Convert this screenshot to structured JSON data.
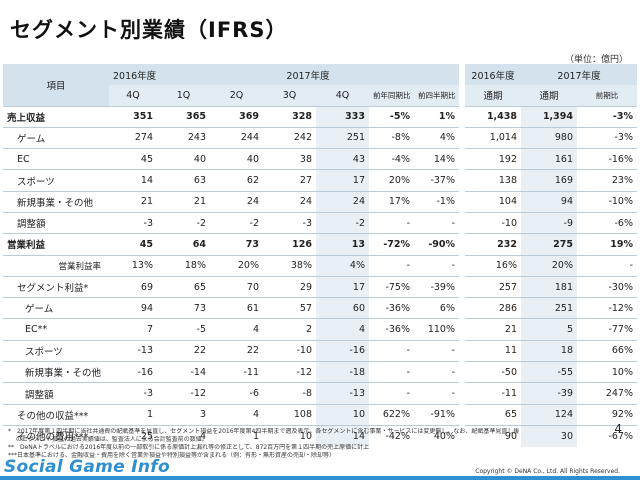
{
  "title": "セグメント別業績（IFRS）",
  "unit": "（単位：億円）",
  "header": {
    "item_label": "項目",
    "fy2016q": "2016年度",
    "fy2017q": "2017年度",
    "fy2016a": "2016年度",
    "fy2017a": "2017年度",
    "cols": [
      "4Q",
      "1Q",
      "2Q",
      "3Q",
      "4Q",
      "前年同期比",
      "前四半期比",
      "通期",
      "通期",
      "前期比"
    ]
  },
  "rows": [
    {
      "label": "売上収益",
      "bold": true,
      "values": [
        "351",
        "365",
        "369",
        "328",
        "333",
        "-5%",
        "1%",
        "1,438",
        "1,394",
        "-3%"
      ]
    },
    {
      "label": "ゲーム",
      "values": [
        "274",
        "243",
        "244",
        "242",
        "251",
        "-8%",
        "4%",
        "1,014",
        "980",
        "-3%"
      ]
    },
    {
      "label": "EC",
      "values": [
        "45",
        "40",
        "40",
        "38",
        "43",
        "-4%",
        "14%",
        "192",
        "161",
        "-16%"
      ]
    },
    {
      "label": "スポーツ",
      "values": [
        "14",
        "63",
        "62",
        "27",
        "17",
        "20%",
        "-37%",
        "138",
        "169",
        "23%"
      ]
    },
    {
      "label": "新規事業・その他",
      "values": [
        "21",
        "21",
        "24",
        "24",
        "24",
        "17%",
        "-1%",
        "104",
        "94",
        "-10%"
      ]
    },
    {
      "label": "調整額",
      "values": [
        "-3",
        "-2",
        "-2",
        "-3",
        "-2",
        "-",
        "-",
        "-10",
        "-9",
        "-6%"
      ]
    },
    {
      "label": "営業利益",
      "bold": true,
      "values": [
        "45",
        "64",
        "73",
        "126",
        "13",
        "-72%",
        "-90%",
        "232",
        "275",
        "19%"
      ]
    },
    {
      "label": "営業利益率",
      "align": "right",
      "values": [
        "13%",
        "18%",
        "20%",
        "38%",
        "4%",
        "-",
        "-",
        "16%",
        "20%",
        "-"
      ]
    },
    {
      "label": "セグメント利益*",
      "values": [
        "69",
        "65",
        "70",
        "29",
        "17",
        "-75%",
        "-39%",
        "257",
        "181",
        "-30%"
      ]
    },
    {
      "label": "ゲーム",
      "indent": 2,
      "values": [
        "94",
        "73",
        "61",
        "57",
        "60",
        "-36%",
        "6%",
        "286",
        "251",
        "-12%"
      ]
    },
    {
      "label": "EC**",
      "indent": 2,
      "values": [
        "7",
        "-5",
        "4",
        "2",
        "4",
        "-36%",
        "110%",
        "21",
        "5",
        "-77%"
      ]
    },
    {
      "label": "スポーツ",
      "indent": 2,
      "values": [
        "-13",
        "22",
        "22",
        "-10",
        "-16",
        "-",
        "-",
        "11",
        "18",
        "66%"
      ]
    },
    {
      "label": "新規事業・その他",
      "indent": 2,
      "values": [
        "-16",
        "-14",
        "-11",
        "-12",
        "-18",
        "-",
        "-",
        "-50",
        "-55",
        "10%"
      ]
    },
    {
      "label": "調整額",
      "indent": 2,
      "values": [
        "-3",
        "-12",
        "-6",
        "-8",
        "-13",
        "-",
        "-",
        "-11",
        "-39",
        "247%"
      ]
    },
    {
      "label": "その他の収益***",
      "values": [
        "1",
        "3",
        "4",
        "108",
        "10",
        "622%",
        "-91%",
        "65",
        "124",
        "92%"
      ]
    },
    {
      "label": "その他の費用***",
      "values": [
        "25",
        "4",
        "1",
        "10",
        "14",
        "-42%",
        "40%",
        "90",
        "30",
        "-67%"
      ]
    }
  ],
  "footnotes": [
    "*　2017年度第１四半期に当社共通費の配賦基準を見直し、セグメント損益を2016年度第4四半期まで遡及表示。各セグメントに含む事業・サービスには変更無し。なお、配賦基準見直し後",
    "　 のセグメント損益の過去実績値は、監査法人による会計監査前の数値。",
    "**　DeNAトラベルにおける2016年度以前の一部取引に係る原価計上漏れ等の修正として、872百万円を第１四半期の売上原価に計上",
    "***日本基準における、金融収益・費用を除く営業外損益や特別損益等が含まれる（例：有形・無形資産の売却・除却等）"
  ],
  "page_number": "4",
  "logo_text": "Social Game Info",
  "copyright": "Copyright © DeNA Co., Ltd. All Rights Reserved."
}
